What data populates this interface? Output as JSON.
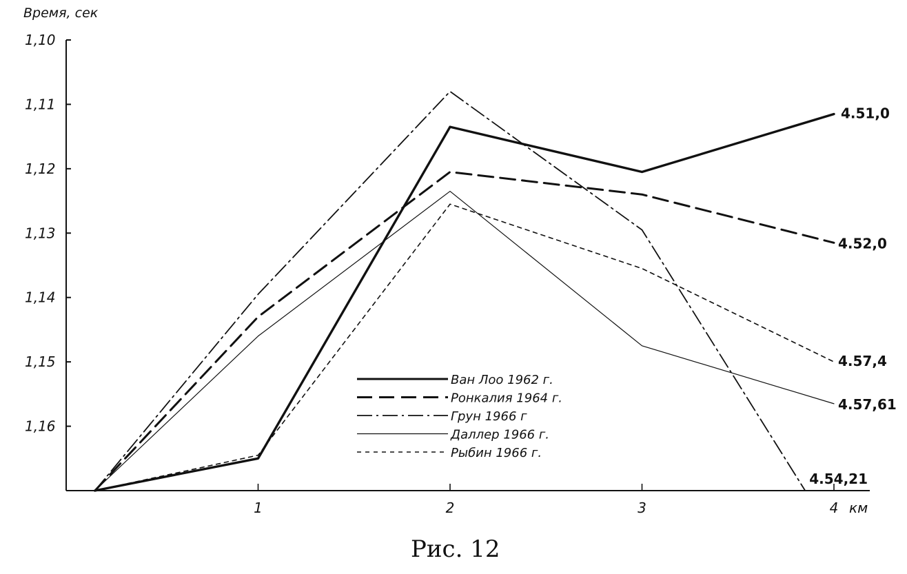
{
  "chart_data": {
    "type": "line",
    "title": "",
    "ylabel": "Время, сек",
    "xlabel": "км",
    "x_ticks": [
      {
        "x": 1,
        "label": "1"
      },
      {
        "x": 2,
        "label": "2"
      },
      {
        "x": 3,
        "label": "3"
      },
      {
        "x": 4,
        "label": "4"
      }
    ],
    "y_ticks": [
      {
        "y": 1.1,
        "label": "1,10"
      },
      {
        "y": 1.11,
        "label": "1,11"
      },
      {
        "y": 1.12,
        "label": "1,12"
      },
      {
        "y": 1.13,
        "label": "1,13"
      },
      {
        "y": 1.14,
        "label": "1,14"
      },
      {
        "y": 1.15,
        "label": "1,15"
      },
      {
        "y": 1.16,
        "label": "1,16"
      }
    ],
    "xlim": [
      0,
      4
    ],
    "ylim": [
      1.1,
      1.17
    ],
    "y_inverted": true,
    "grid": false,
    "legend_position": "center",
    "series": [
      {
        "name": "Ван Лоо 1962 г.",
        "style": "solid-thick",
        "points": [
          [
            0.15,
            1.17
          ],
          [
            1,
            1.165
          ],
          [
            2,
            1.1135
          ],
          [
            3,
            1.1205
          ],
          [
            4,
            1.1115
          ]
        ],
        "end_label": "4.51,0"
      },
      {
        "name": "Ронкалия 1964 г.",
        "style": "long-dash",
        "points": [
          [
            0.15,
            1.17
          ],
          [
            1,
            1.143
          ],
          [
            2,
            1.1205
          ],
          [
            3,
            1.124
          ],
          [
            4,
            1.1315
          ]
        ],
        "end_label": "4.52,0"
      },
      {
        "name": "Грун 1966 г",
        "style": "dash-dot",
        "points": [
          [
            0.15,
            1.17
          ],
          [
            1,
            1.1395
          ],
          [
            2,
            1.108
          ],
          [
            3,
            1.1295
          ],
          [
            3.85,
            1.17
          ]
        ],
        "end_label": "4.54,21"
      },
      {
        "name": "Даллер 1966 г.",
        "style": "solid-thin",
        "points": [
          [
            0.15,
            1.17
          ],
          [
            1,
            1.146
          ],
          [
            2,
            1.1235
          ],
          [
            3,
            1.1475
          ],
          [
            4,
            1.1565
          ]
        ],
        "end_label": "4.57,61"
      },
      {
        "name": "Рыбин 1966 г.",
        "style": "short-dash",
        "points": [
          [
            0.15,
            1.17
          ],
          [
            1,
            1.1645
          ],
          [
            2,
            1.1255
          ],
          [
            3,
            1.1355
          ],
          [
            4,
            1.15
          ]
        ],
        "end_label": "4.57,4"
      }
    ]
  },
  "caption": "Рис. 12"
}
